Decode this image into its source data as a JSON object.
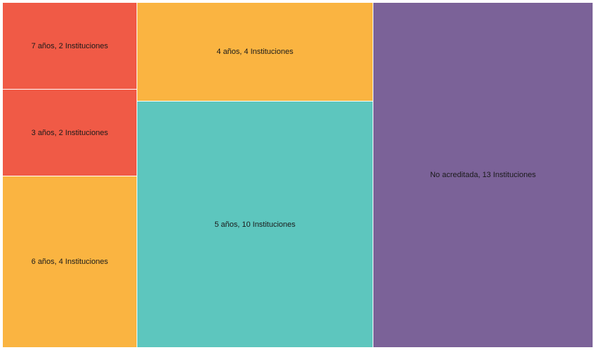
{
  "chart_data": {
    "type": "treemap",
    "items": [
      {
        "label": "7 años, 2 Instituciones",
        "years": "7 años",
        "institutions": 2,
        "color": "#f05a46"
      },
      {
        "label": "3 años, 2 Instituciones",
        "years": "3 años",
        "institutions": 2,
        "color": "#f05a46"
      },
      {
        "label": "6 años, 4 Instituciones",
        "years": "6 años",
        "institutions": 4,
        "color": "#fab441"
      },
      {
        "label": "4 años, 4 Instituciones",
        "years": "4 años",
        "institutions": 4,
        "color": "#fab441"
      },
      {
        "label": "5 años, 10 Instituciones",
        "years": "5 años",
        "institutions": 10,
        "color": "#5dc6be"
      },
      {
        "label": "No acreditada, 13 Instituciones",
        "years": "No acreditada",
        "institutions": 13,
        "color": "#7b6298"
      }
    ]
  }
}
